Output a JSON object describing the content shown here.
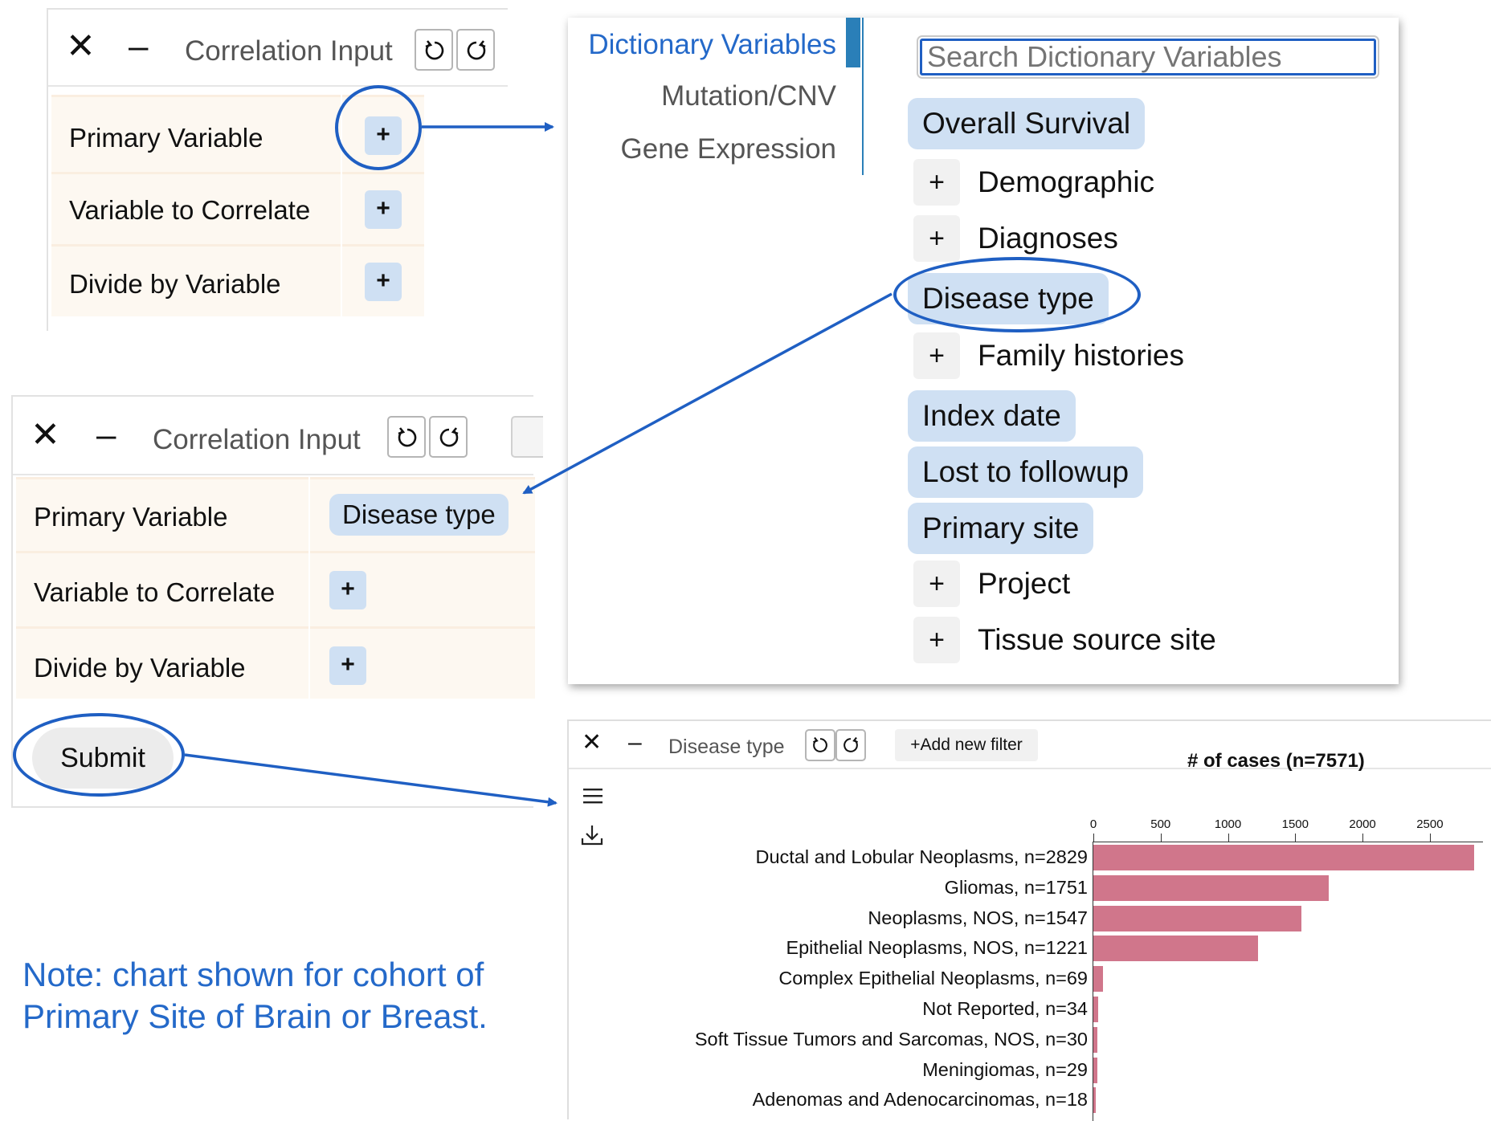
{
  "panel_top": {
    "title": "Correlation Input",
    "rows": [
      {
        "label": "Primary Variable",
        "action": "+"
      },
      {
        "label": "Variable to Correlate",
        "action": "+"
      },
      {
        "label": "Divide by Variable",
        "action": "+"
      }
    ]
  },
  "panel_bottom": {
    "title": "Correlation Input",
    "rows": [
      {
        "label": "Primary Variable",
        "value": "Disease type"
      },
      {
        "label": "Variable to Correlate",
        "action": "+"
      },
      {
        "label": "Divide by Variable",
        "action": "+"
      }
    ],
    "submit_label": "Submit"
  },
  "dictionary": {
    "tabs": [
      "Dictionary Variables",
      "Mutation/CNV",
      "Gene Expression"
    ],
    "active_tab": "Dictionary Variables",
    "search_placeholder": "Search Dictionary Variables",
    "items": [
      {
        "label": "Overall Survival",
        "kind": "leaf"
      },
      {
        "label": "Demographic",
        "kind": "group"
      },
      {
        "label": "Diagnoses",
        "kind": "group"
      },
      {
        "label": "Disease type",
        "kind": "leaf"
      },
      {
        "label": "Family histories",
        "kind": "group"
      },
      {
        "label": "Index date",
        "kind": "leaf"
      },
      {
        "label": "Lost to followup",
        "kind": "leaf"
      },
      {
        "label": "Primary site",
        "kind": "leaf"
      },
      {
        "label": "Project",
        "kind": "group"
      },
      {
        "label": "Tissue source site",
        "kind": "group"
      }
    ],
    "plus_glyph": "+"
  },
  "chart_panel": {
    "title": "Disease type",
    "add_filter_label": "+Add new filter",
    "icons": [
      "menu-icon",
      "download-icon"
    ]
  },
  "chart_data": {
    "type": "bar",
    "orientation": "horizontal",
    "title": "# of cases (n=7571)",
    "axis_position": "top",
    "xlim": [
      0,
      2829
    ],
    "ticks": [
      0,
      500,
      1000,
      1500,
      2000,
      2500
    ],
    "categories": [
      "Ductal and Lobular Neoplasms, n=2829",
      "Gliomas, n=1751",
      "Neoplasms, NOS, n=1547",
      "Epithelial Neoplasms, NOS, n=1221",
      "Complex Epithelial Neoplasms, n=69",
      "Not Reported, n=34",
      "Soft Tissue Tumors and Sarcomas, NOS, n=30",
      "Meningiomas, n=29",
      "Adenomas and Adenocarcinomas, n=18"
    ],
    "values": [
      2829,
      1751,
      1547,
      1221,
      69,
      34,
      30,
      29,
      18
    ],
    "bar_color": "#d0768b"
  },
  "note": {
    "line1": "Note: chart shown for cohort of",
    "line2": "Primary Site of Brain or Breast."
  },
  "colors": {
    "accent": "#1f5fc3",
    "pill": "#cfe0f3",
    "row_bg": "#fdf8f1",
    "note": "#2469c9",
    "tab_active": "#2469c9",
    "tab_active_bar": "#2a7fb8"
  }
}
